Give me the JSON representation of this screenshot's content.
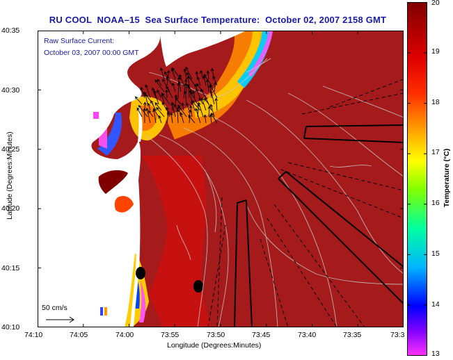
{
  "title": "RU COOL  NOAA–15  Sea Surface Temperature:  October 02, 2007 2158 GMT",
  "annotation": {
    "line1": "Raw Surface Current:",
    "line2": "October 03, 2007 00:00 GMT"
  },
  "axes": {
    "ylabel": "Latitude (Degrees:Minutes)",
    "xlabel": "Longitude (Degrees:Minutes)",
    "yticks": [
      "40:35",
      "40:30",
      "40:25",
      "40:20",
      "40:15",
      "40:10"
    ],
    "xticks": [
      "74:10",
      "74:05",
      "74:00",
      "73:55",
      "73:50",
      "73:45",
      "73:40",
      "73:35",
      "73:3"
    ]
  },
  "colorbar": {
    "label": "Temperature (°C)",
    "ticks": [
      "20",
      "19",
      "18",
      "17",
      "16",
      "15",
      "14",
      "13"
    ],
    "range": [
      13,
      20
    ],
    "colors": [
      "#ff33ff",
      "#8000ff",
      "#0000ff",
      "#00c8ff",
      "#00ff80",
      "#c8ff00",
      "#ffd000",
      "#ff7000",
      "#ff0000",
      "#b40000",
      "#800000"
    ]
  },
  "scale": {
    "label": "50 cm/s"
  },
  "colors": {
    "ocean": "#a51a1a",
    "land": "#ffffff",
    "title": "#1a1aa6"
  }
}
